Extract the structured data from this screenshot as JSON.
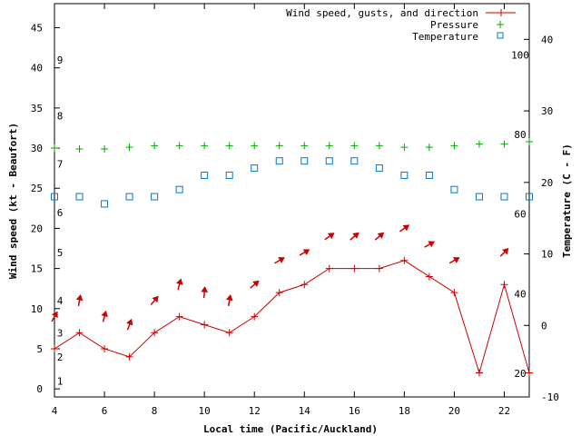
{
  "chart_data": {
    "type": "line",
    "xlabel": "Local time (Pacific/Auckland)",
    "ylabel_left": "Wind speed (kt - Beaufort)",
    "ylabel_right": "Temperature (C - F)",
    "xlim": [
      4,
      23
    ],
    "ylim_left": [
      -1,
      48
    ],
    "ylim_right": [
      -10,
      45
    ],
    "x_ticks": [
      4,
      6,
      8,
      10,
      12,
      14,
      16,
      18,
      20,
      22
    ],
    "y_left_ticks": [
      0,
      5,
      10,
      15,
      20,
      25,
      30,
      35,
      40,
      45
    ],
    "y_right_ticks": [
      -10,
      0,
      10,
      20,
      30,
      40
    ],
    "beaufort_labels": [
      {
        "label": "1",
        "kt": 1
      },
      {
        "label": "2",
        "kt": 4
      },
      {
        "label": "3",
        "kt": 7
      },
      {
        "label": "4",
        "kt": 11
      },
      {
        "label": "5",
        "kt": 17
      },
      {
        "label": "6",
        "kt": 22
      },
      {
        "label": "7",
        "kt": 28
      },
      {
        "label": "8",
        "kt": 34
      },
      {
        "label": "9",
        "kt": 41
      }
    ],
    "fahrenheit_labels": [
      {
        "label": "20",
        "temp_c": -6.7
      },
      {
        "label": "40",
        "temp_c": 4.4
      },
      {
        "label": "60",
        "temp_c": 15.6
      },
      {
        "label": "80",
        "temp_c": 26.7
      },
      {
        "label": "100",
        "temp_c": 37.8
      }
    ],
    "legend_position": "top-right",
    "series": [
      {
        "name": "Wind speed, gusts, and direction",
        "color": "#cc0000",
        "x": [
          4,
          5,
          6,
          7,
          8,
          9,
          10,
          11,
          12,
          13,
          14,
          15,
          16,
          17,
          18,
          19,
          20,
          21,
          22,
          23
        ],
        "values": [
          5,
          7,
          5,
          4,
          7,
          9,
          8,
          7,
          9,
          12,
          13,
          15,
          15,
          15,
          16,
          14,
          12,
          2,
          13,
          2
        ],
        "gusts": [
          9,
          11,
          9,
          8,
          11,
          13,
          12,
          11,
          13,
          16,
          17,
          19,
          19,
          19,
          20,
          18,
          16,
          null,
          17,
          null
        ],
        "direction_deg": [
          30,
          10,
          15,
          20,
          40,
          15,
          5,
          10,
          50,
          60,
          60,
          55,
          50,
          50,
          55,
          60,
          60,
          null,
          45,
          null
        ]
      },
      {
        "name": "Pressure",
        "color": "#00aa00",
        "x": [
          4,
          5,
          6,
          7,
          8,
          9,
          10,
          11,
          12,
          13,
          14,
          15,
          16,
          17,
          18,
          19,
          20,
          21,
          22,
          23
        ],
        "values": [
          30,
          29.9,
          29.9,
          30.1,
          30.3,
          30.3,
          30.3,
          30.3,
          30.3,
          30.3,
          30.3,
          30.3,
          30.3,
          30.3,
          30.1,
          30.1,
          30.3,
          30.5,
          30.5,
          30.8
        ]
      },
      {
        "name": "Temperature",
        "color": "#0077cc",
        "x": [
          4,
          5,
          6,
          7,
          8,
          9,
          10,
          11,
          12,
          13,
          14,
          15,
          16,
          17,
          18,
          19,
          20,
          21,
          22,
          23
        ],
        "values": [
          18,
          18,
          17,
          18,
          18,
          19,
          21,
          21,
          22,
          23,
          23,
          23,
          23,
          22,
          21,
          21,
          19,
          18,
          18,
          18
        ]
      }
    ]
  }
}
